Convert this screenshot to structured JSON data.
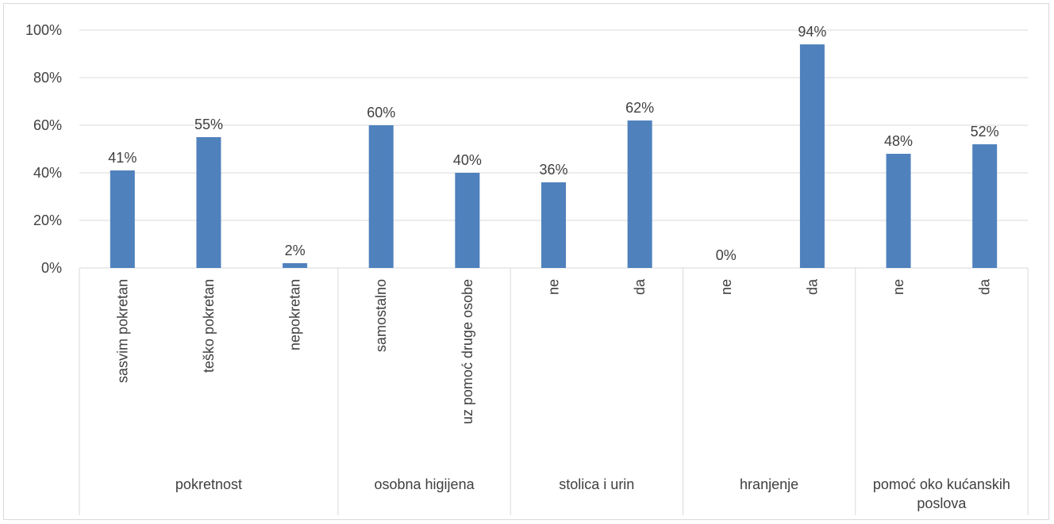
{
  "chart_data": {
    "type": "bar",
    "title": "",
    "xlabel": "",
    "ylabel": "",
    "ylim": [
      0,
      100
    ],
    "yticks": [
      "0%",
      "20%",
      "40%",
      "60%",
      "80%",
      "100%"
    ],
    "grid": true,
    "bar_color": "#4f81bd",
    "groups": [
      {
        "name": "pokretnost",
        "categories": [
          "sasvim pokretan",
          "teško pokretan",
          "nepokretan"
        ],
        "values": [
          41,
          55,
          2
        ],
        "labels": [
          "41%",
          "55%",
          "2%"
        ]
      },
      {
        "name": "osobna higijena",
        "categories": [
          "samostalno",
          "uz pomoć druge osobe"
        ],
        "values": [
          60,
          40
        ],
        "labels": [
          "60%",
          "40%"
        ]
      },
      {
        "name": "stolica i urin",
        "categories": [
          "ne",
          "da"
        ],
        "values": [
          36,
          62
        ],
        "labels": [
          "36%",
          "62%"
        ]
      },
      {
        "name": "hranjenje",
        "categories": [
          "ne",
          "da"
        ],
        "values": [
          0,
          94
        ],
        "labels": [
          "0%",
          "94%"
        ]
      },
      {
        "name": "pomoć oko kućanskih poslova",
        "categories": [
          "ne",
          "da"
        ],
        "values": [
          48,
          52
        ],
        "labels": [
          "48%",
          "52%"
        ]
      }
    ]
  }
}
